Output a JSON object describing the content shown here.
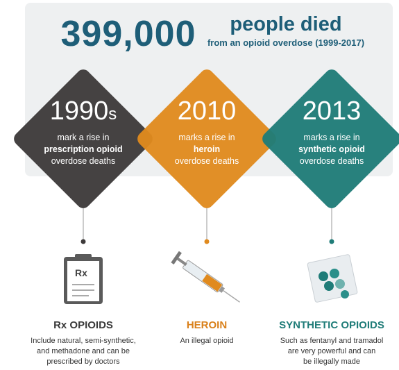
{
  "header": {
    "number": "399,000",
    "headline": "people died",
    "subline": "from an opioid overdose (1999-2017)"
  },
  "waves": [
    {
      "year": "1990",
      "suffix": "s",
      "lines": [
        "mark a rise in",
        "prescription opioid",
        "overdose deaths"
      ],
      "icon_text": "Rx",
      "title": "Rx OPIOIDS",
      "description": [
        "Include natural, semi-synthetic,",
        "and methadone and can be",
        "prescribed by doctors"
      ]
    },
    {
      "year": "2010",
      "suffix": "",
      "lines": [
        "marks a rise in",
        "heroin",
        "overdose deaths"
      ],
      "title": "HEROIN",
      "description": [
        "An illegal opioid"
      ]
    },
    {
      "year": "2013",
      "suffix": "",
      "lines": [
        "marks a rise in",
        "synthetic opioid",
        "overdose deaths"
      ],
      "title": "SYNTHETIC OPIOIDS",
      "description": [
        "Such as fentanyl and tramadol",
        "are very powerful and can",
        "be illegally made"
      ]
    }
  ]
}
